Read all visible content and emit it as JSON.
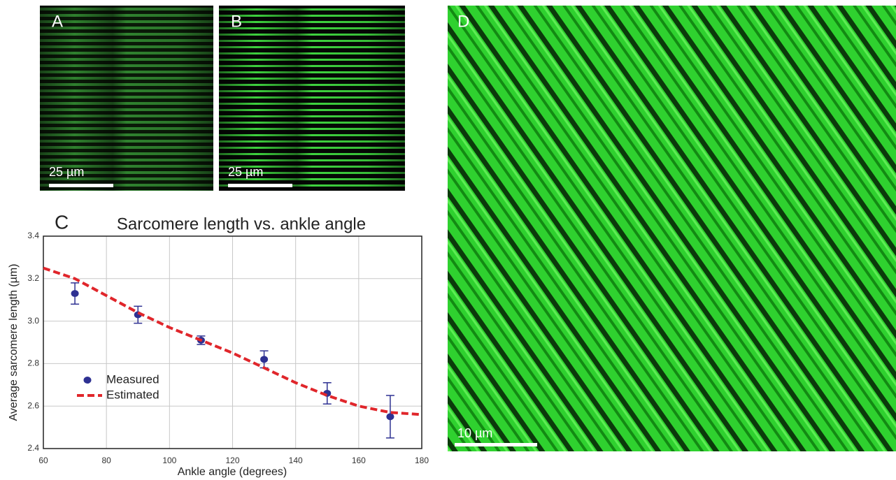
{
  "panels": [
    {
      "label": "A",
      "scale_bar": "25 µm"
    },
    {
      "label": "B",
      "scale_bar": "25 µm"
    },
    {
      "label": "D",
      "scale_bar": "10 µm"
    }
  ],
  "chart_data": {
    "type": "scatter",
    "panel_label": "C",
    "title": "Sarcomere length vs. ankle angle",
    "x_label": "Ankle angle (degrees)",
    "y_label": "Average sarcomere length (µm)",
    "xlim": [
      60,
      180
    ],
    "xticks": [
      60,
      80,
      100,
      120,
      140,
      160,
      180
    ],
    "ylim": [
      2.4,
      3.4
    ],
    "yticks": [
      2.4,
      2.6,
      2.8,
      {
        "value": 3,
        "label": "3.0"
      },
      3.2,
      3.4
    ],
    "grid": true,
    "legend": "lower left",
    "series": [
      {
        "name": "Measured",
        "color": "#2e3192",
        "mode": "markers",
        "x": [
          70,
          90,
          110,
          130,
          150,
          170
        ],
        "values": [
          3.13,
          3.03,
          2.91,
          2.82,
          2.66,
          2.55
        ],
        "errors": [
          0.05,
          0.04,
          0.02,
          0.04,
          0.05,
          0.1
        ]
      },
      {
        "name": "Estimated",
        "color": "#e0262b",
        "mode": "dashed line",
        "x": [
          60,
          70,
          80,
          90,
          100,
          110,
          120,
          130,
          140,
          150,
          160,
          170,
          180
        ],
        "values": [
          3.25,
          3.2,
          3.12,
          3.04,
          2.97,
          2.91,
          2.85,
          2.78,
          2.71,
          2.65,
          2.6,
          2.57,
          2.56
        ]
      }
    ]
  }
}
